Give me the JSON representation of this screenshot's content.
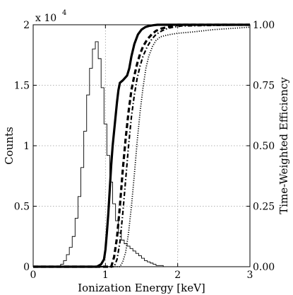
{
  "chart_data": {
    "type": "line",
    "xlabel": "Ionization Energy [keV]",
    "ylabel_left": "Counts",
    "ylabel_right": "Time-Weighted Efficiency",
    "y_multiplier_label": "x 10",
    "y_multiplier_exponent": "4",
    "xlim": [
      0,
      3
    ],
    "ylim_left": [
      0,
      2
    ],
    "ylim_right": [
      0,
      1
    ],
    "grid": true,
    "x_ticks": [
      0,
      1,
      2,
      3
    ],
    "x_tick_labels": [
      "0",
      "1",
      "2",
      "3"
    ],
    "y_left_ticks": [
      0,
      0.5,
      1,
      1.5,
      2
    ],
    "y_left_tick_labels": [
      "0",
      "0.5",
      "1",
      "1.5",
      "2"
    ],
    "y_right_ticks": [
      0,
      0.25,
      0.5,
      0.75,
      1
    ],
    "y_right_tick_labels": [
      "0.00",
      "0.25",
      "0.50",
      "0.75",
      "1.00"
    ],
    "histogram": {
      "axis": "left",
      "units_note": "counts x 10^4",
      "bins": [
        [
          0.38,
          0.42,
          0.02
        ],
        [
          0.42,
          0.46,
          0.05
        ],
        [
          0.46,
          0.5,
          0.1
        ],
        [
          0.5,
          0.54,
          0.16
        ],
        [
          0.54,
          0.58,
          0.25
        ],
        [
          0.58,
          0.62,
          0.4
        ],
        [
          0.62,
          0.66,
          0.58
        ],
        [
          0.66,
          0.7,
          0.82
        ],
        [
          0.7,
          0.74,
          1.12
        ],
        [
          0.74,
          0.78,
          1.42
        ],
        [
          0.78,
          0.82,
          1.64
        ],
        [
          0.82,
          0.86,
          1.8
        ],
        [
          0.86,
          0.9,
          1.86
        ],
        [
          0.9,
          0.94,
          1.72
        ],
        [
          0.94,
          0.98,
          1.48
        ],
        [
          0.98,
          1.02,
          1.18
        ],
        [
          1.02,
          1.06,
          0.92
        ],
        [
          1.06,
          1.1,
          0.7
        ],
        [
          1.1,
          1.14,
          0.52
        ],
        [
          1.14,
          1.18,
          0.38
        ],
        [
          1.18,
          1.22,
          0.28
        ],
        [
          1.22,
          1.26,
          0.22
        ],
        [
          1.26,
          1.3,
          0.19
        ],
        [
          1.3,
          1.34,
          0.17
        ],
        [
          1.34,
          1.38,
          0.15
        ],
        [
          1.38,
          1.42,
          0.13
        ],
        [
          1.42,
          1.46,
          0.11
        ],
        [
          1.46,
          1.5,
          0.09
        ],
        [
          1.5,
          1.54,
          0.07
        ],
        [
          1.54,
          1.58,
          0.05
        ],
        [
          1.58,
          1.62,
          0.04
        ],
        [
          1.62,
          1.66,
          0.03
        ],
        [
          1.66,
          1.7,
          0.02
        ],
        [
          1.7,
          1.8,
          0.01
        ]
      ]
    },
    "series": [
      {
        "axis": "right",
        "style": "solid",
        "stroke_width": 3.2,
        "x": [
          0,
          0.88,
          0.94,
          0.98,
          1.0,
          1.02,
          1.04,
          1.06,
          1.08,
          1.1,
          1.12,
          1.14,
          1.16,
          1.18,
          1.2,
          1.22,
          1.24,
          1.3,
          1.33,
          1.36,
          1.4,
          1.45,
          1.5,
          1.55,
          1.6,
          1.66,
          1.72,
          1.8,
          1.9,
          2.0,
          3.0
        ],
        "y": [
          0,
          0,
          0.01,
          0.03,
          0.07,
          0.14,
          0.22,
          0.32,
          0.42,
          0.5,
          0.56,
          0.62,
          0.68,
          0.73,
          0.76,
          0.765,
          0.77,
          0.79,
          0.82,
          0.87,
          0.92,
          0.96,
          0.98,
          0.99,
          0.995,
          0.998,
          1.0,
          1.0,
          1.0,
          1.0,
          1.0
        ]
      },
      {
        "axis": "right",
        "style": "dashed",
        "stroke_width": 3.2,
        "x": [
          0,
          1.08,
          1.12,
          1.16,
          1.2,
          1.24,
          1.28,
          1.32,
          1.36,
          1.4,
          1.44,
          1.48,
          1.52,
          1.58,
          1.64,
          1.7,
          1.78,
          1.86,
          1.94,
          2.0,
          3.0
        ],
        "y": [
          0,
          0,
          0.04,
          0.12,
          0.25,
          0.4,
          0.53,
          0.64,
          0.73,
          0.79,
          0.84,
          0.88,
          0.91,
          0.94,
          0.96,
          0.975,
          0.985,
          0.99,
          0.995,
          1.0,
          1.0
        ]
      },
      {
        "axis": "right",
        "style": "dashdot",
        "stroke_width": 2.2,
        "x": [
          0,
          1.12,
          1.16,
          1.2,
          1.24,
          1.28,
          1.32,
          1.36,
          1.4,
          1.44,
          1.48,
          1.52,
          1.58,
          1.64,
          1.7,
          1.78,
          1.86,
          1.94,
          2.05,
          3.0
        ],
        "y": [
          0,
          0,
          0.03,
          0.1,
          0.22,
          0.36,
          0.5,
          0.62,
          0.71,
          0.78,
          0.83,
          0.87,
          0.91,
          0.94,
          0.96,
          0.975,
          0.985,
          0.99,
          0.995,
          1.0
        ]
      },
      {
        "axis": "right",
        "style": "dotted",
        "stroke_width": 1.8,
        "x": [
          0,
          1.2,
          1.24,
          1.28,
          1.32,
          1.36,
          1.4,
          1.44,
          1.48,
          1.52,
          1.56,
          1.6,
          1.65,
          1.7,
          1.76,
          1.82,
          1.9,
          2.0,
          2.2,
          2.5,
          3.0
        ],
        "y": [
          0,
          0,
          0.02,
          0.06,
          0.14,
          0.25,
          0.38,
          0.52,
          0.64,
          0.74,
          0.82,
          0.87,
          0.91,
          0.935,
          0.95,
          0.955,
          0.96,
          0.965,
          0.97,
          0.98,
          0.99
        ]
      }
    ]
  }
}
